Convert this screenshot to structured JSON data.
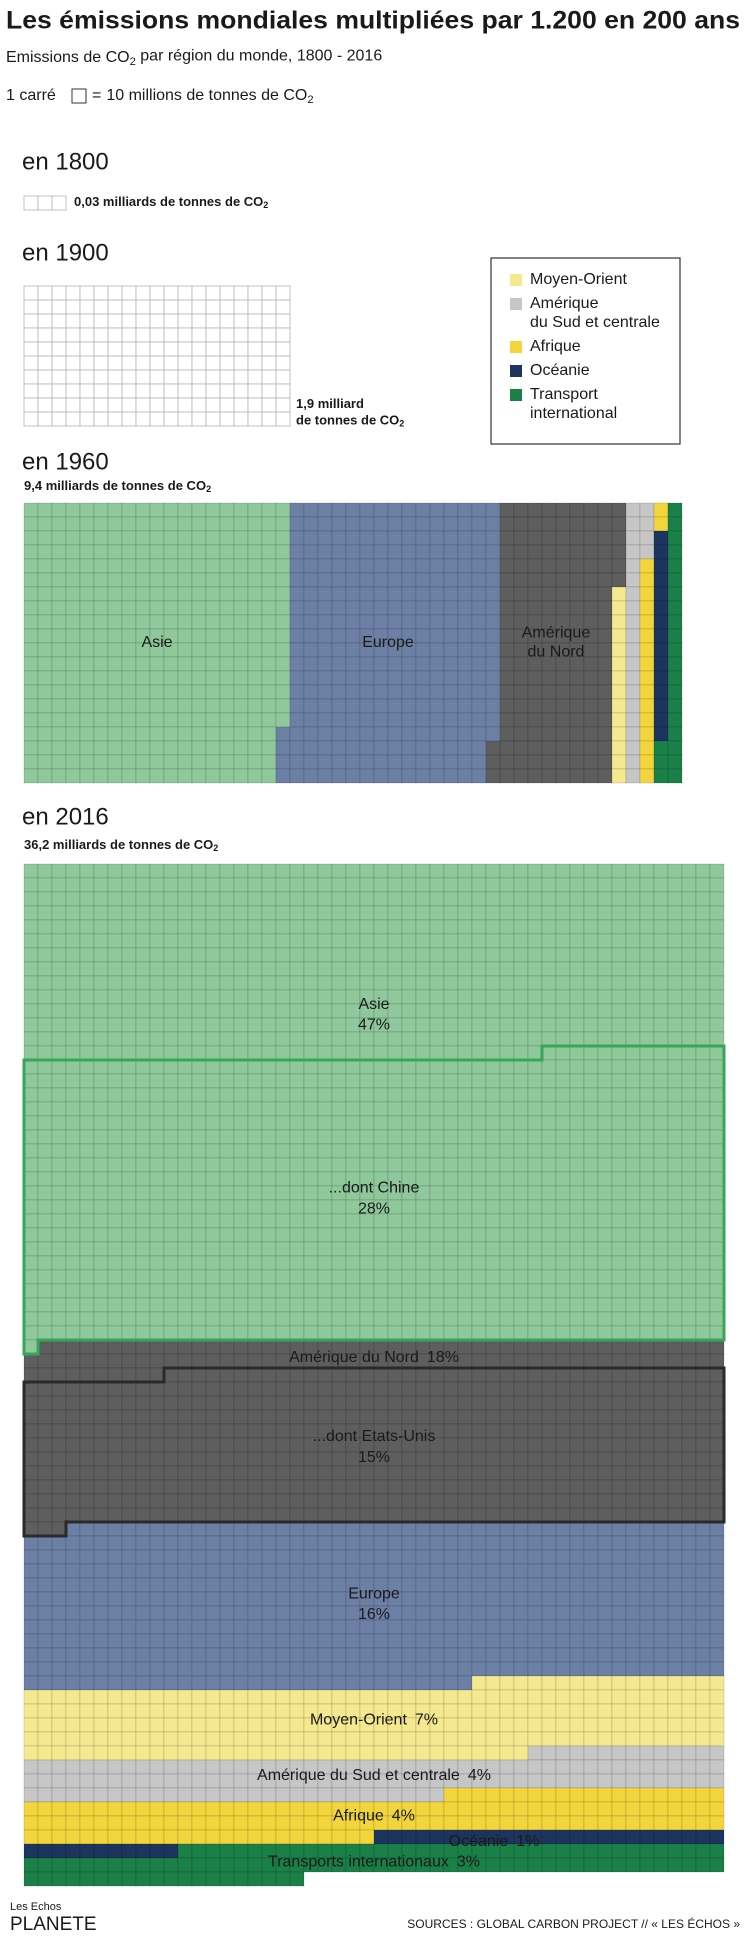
{
  "header": {
    "title": "Les émissions mondiales multipliées par 1.200 en 200 ans",
    "subtitle": {
      "text": "Emissions de CO",
      "sub": "2",
      "after": " par région du monde, 1800 - 2016"
    },
    "scale": {
      "before": "1 carré",
      "equals": "=",
      "value": 10,
      "unit": " millions de tonnes de CO",
      "sub": "2"
    }
  },
  "panels": [
    {
      "year": "en 1800",
      "total": 0.03,
      "total_label": "0,03",
      "unit": [
        " milliards de tonnes de CO"
      ],
      "sub": "2"
    },
    {
      "year": "en 1900",
      "total": 1.9,
      "total_label": "1,9",
      "unit": [
        " milliard",
        "de tonnes de CO"
      ],
      "sub": "2"
    },
    {
      "year": "en 1960",
      "total": 9.4,
      "total_label": "9,4",
      "unit": [
        " milliards de tonnes de CO"
      ],
      "sub": "2",
      "regions": [
        {
          "name": "Asie",
          "value": 40,
          "color": "#8fc89b"
        },
        {
          "name": "Europe",
          "value": 32,
          "color": "#6c80a5"
        },
        {
          "name": "Amérique\ndu Nord",
          "value": 18,
          "color": "#5e5e5e"
        },
        {
          "name": null,
          "value": 1.5,
          "color": "#f5e98f"
        },
        {
          "name": null,
          "value": 2.5,
          "color": "#c6c6c6"
        },
        {
          "name": null,
          "value": 2,
          "color": "#f2d53c"
        },
        {
          "name": null,
          "value": 1.5,
          "color": "#1c355e"
        },
        {
          "name": null,
          "value": 2.5,
          "color": "#1a8048"
        }
      ]
    },
    {
      "year": "en 2016",
      "total": 36.2,
      "total_label": "36,2",
      "unit": [
        " milliards de tonnes de CO"
      ],
      "sub": "2",
      "regions": [
        {
          "name": "Asie",
          "value": 47,
          "value_label": "47%",
          "color": "#8fc89b",
          "sub_region": {
            "name": "...dont Chine",
            "value": 28,
            "value_label": "28%"
          }
        },
        {
          "name": "Amérique du Nord",
          "value": 18,
          "value_label": "18%",
          "color": "#5e5e5e",
          "sub_region": {
            "name": "...dont Etats-Unis",
            "value": 15,
            "value_label": "15%"
          }
        },
        {
          "name": "Europe",
          "value": 16,
          "value_label": "16%",
          "color": "#6c80a5"
        },
        {
          "name": "Moyen-Orient",
          "value": 7,
          "value_label": "7%",
          "color": "#f5e98f"
        },
        {
          "name": "Amérique du Sud et centrale",
          "value": 4,
          "value_label": "4%",
          "color": "#c6c6c6"
        },
        {
          "name": "Afrique",
          "value": 4,
          "value_label": "4%",
          "color": "#f2d53c"
        },
        {
          "name": "Océanie",
          "value": 1,
          "value_label": "1%",
          "color": "#1c355e"
        },
        {
          "name": "Transports internationaux",
          "value": 3,
          "value_label": "3%",
          "color": "#1a8048"
        }
      ]
    }
  ],
  "legend": [
    {
      "name": "Moyen-Orient",
      "color": "#f5e98f"
    },
    {
      "name": "Amérique\ndu Sud et centrale",
      "color": "#c6c6c6"
    },
    {
      "name": "Afrique",
      "color": "#f2d53c"
    },
    {
      "name": "Océanie",
      "color": "#1c355e"
    },
    {
      "name": "Transport\ninternational",
      "color": "#1a8048"
    }
  ],
  "footer": {
    "logo_top": "Les Echos",
    "logo": "PLANETE",
    "source": "SOURCES : GLOBAL CARBON PROJECT // « LES ÉCHOS »"
  }
}
